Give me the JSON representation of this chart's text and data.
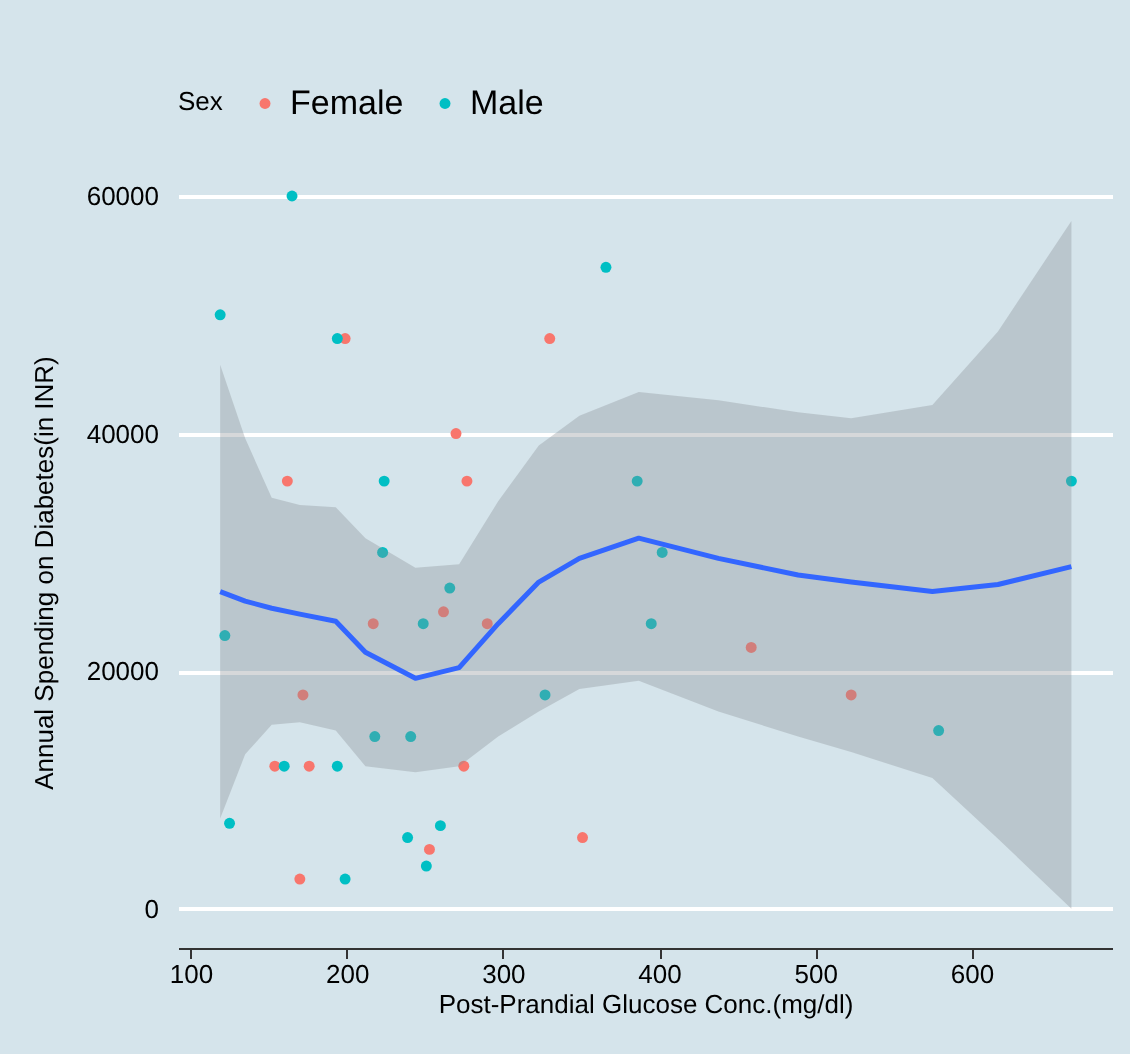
{
  "chart_data": {
    "type": "scatter",
    "xlabel": "Post-Prandial Glucose Conc.(mg/dl)",
    "ylabel": "Annual Spending on Diabetes(in INR)",
    "legend_title": "Sex",
    "xlim": [
      92,
      690
    ],
    "ylim": [
      -3300,
      60000
    ],
    "xticks": [
      100,
      200,
      300,
      400,
      500,
      600
    ],
    "yticks": [
      0,
      20000,
      40000,
      60000
    ],
    "grid": "y",
    "legend": "top",
    "marker": "circle",
    "series": [
      {
        "name": "Female",
        "color": "#f8766d",
        "x": [
          199,
          270,
          162,
          277,
          262,
          217,
          290,
          172,
          154,
          176,
          275,
          253,
          170,
          330,
          459,
          523,
          351
        ],
        "values": [
          48000,
          40000,
          36000,
          36000,
          25000,
          24000,
          24000,
          18000,
          12000,
          12000,
          12000,
          5000,
          2500,
          48000,
          22000,
          18000,
          6000
        ]
      },
      {
        "name": "Male",
        "color": "#00bfc4",
        "x": [
          165,
          119,
          194,
          224,
          223,
          266,
          249,
          122,
          218,
          241,
          160,
          194,
          125,
          260,
          239,
          251,
          199,
          366,
          386,
          664,
          402,
          395,
          327,
          579
        ],
        "values": [
          60000,
          50000,
          48000,
          36000,
          30000,
          27000,
          24000,
          23000,
          14500,
          14500,
          12000,
          12000,
          7200,
          7000,
          6000,
          3600,
          2500,
          54000,
          36000,
          36000,
          30000,
          24000,
          18000,
          15000
        ]
      },
      {
        "type": "line",
        "marker": "none",
        "color": "#3366ff",
        "x": [
          119,
          135,
          152,
          170,
          193,
          212,
          244,
          272,
          297,
          323,
          349,
          387,
          438,
          489,
          523,
          575,
          617,
          664
        ],
        "values": [
          26700,
          25900,
          25300,
          24800,
          24200,
          21600,
          19400,
          20300,
          24000,
          27500,
          29500,
          31200,
          29500,
          28100,
          27500,
          26700,
          27300,
          28800
        ],
        "lower": [
          7600,
          13000,
          15500,
          15700,
          15000,
          12000,
          11500,
          12000,
          14500,
          16600,
          18500,
          19200,
          16600,
          14500,
          13200,
          11000,
          5900,
          0
        ],
        "upper": [
          45800,
          39600,
          34600,
          34000,
          33800,
          31200,
          28700,
          29000,
          34300,
          39000,
          41500,
          43500,
          42800,
          41800,
          41300,
          42400,
          48600,
          57900
        ]
      }
    ]
  }
}
